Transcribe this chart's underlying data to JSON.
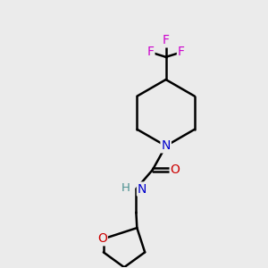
{
  "background_color": "#ebebeb",
  "atom_colors": {
    "C": "#000000",
    "N": "#0000cc",
    "O": "#cc0000",
    "F": "#cc00cc",
    "H": "#4a9090"
  },
  "figsize": [
    3.0,
    3.0
  ],
  "dpi": 100
}
